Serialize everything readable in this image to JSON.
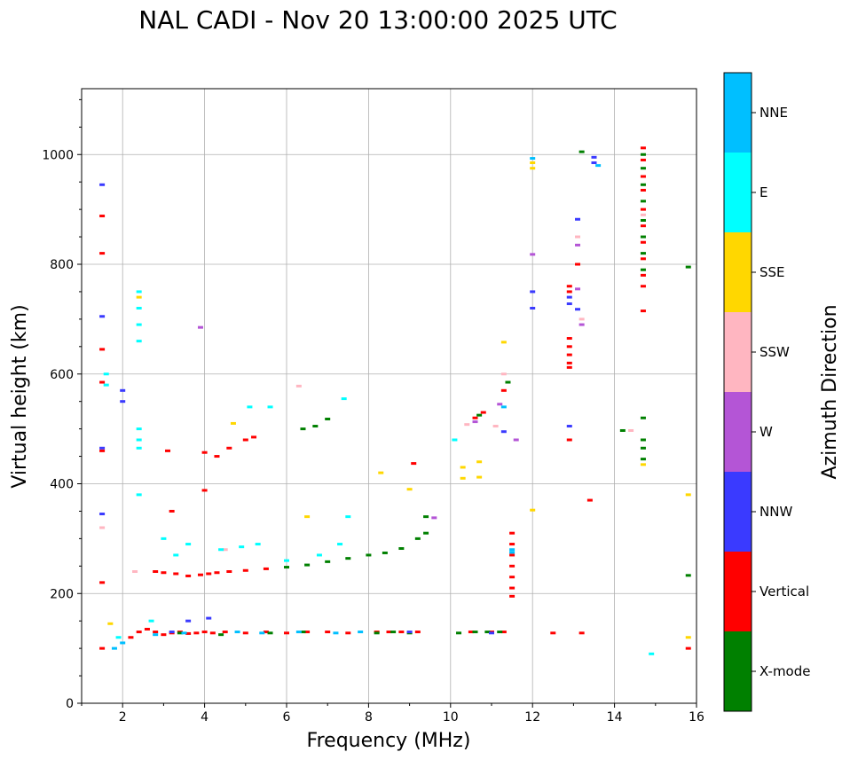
{
  "chart_data": {
    "type": "scatter",
    "title": "NAL CADI - Nov 20 13:00:00 2025 UTC",
    "xlabel": "Frequency (MHz)",
    "ylabel": "Virtual height (km)",
    "xlim": [
      1,
      16
    ],
    "ylim": [
      0,
      1120
    ],
    "xticks": [
      2,
      4,
      6,
      8,
      10,
      12,
      14,
      16
    ],
    "yticks": [
      0,
      200,
      400,
      600,
      800,
      1000
    ],
    "grid": true,
    "colorbar": {
      "title": "Azimuth Direction",
      "categories": [
        {
          "name": "X-mode",
          "color": "#008000"
        },
        {
          "name": "Vertical",
          "color": "#ff0000"
        },
        {
          "name": "NNW",
          "color": "#3a3aff"
        },
        {
          "name": "W",
          "color": "#b455d6"
        },
        {
          "name": "SSW",
          "color": "#ffb6c1"
        },
        {
          "name": "SSE",
          "color": "#ffd700"
        },
        {
          "name": "E",
          "color": "#00ffff"
        },
        {
          "name": "NNE",
          "color": "#00bfff"
        }
      ]
    },
    "series": [
      {
        "name": "Vertical",
        "points": [
          [
            1.5,
            100
          ],
          [
            1.5,
            220
          ],
          [
            1.5,
            460
          ],
          [
            1.5,
            585
          ],
          [
            1.5,
            645
          ],
          [
            1.5,
            820
          ],
          [
            1.5,
            888
          ],
          [
            2.2,
            120
          ],
          [
            2.4,
            130
          ],
          [
            2.6,
            135
          ],
          [
            2.8,
            130
          ],
          [
            3.0,
            125
          ],
          [
            3.2,
            128
          ],
          [
            3.4,
            130
          ],
          [
            3.6,
            127
          ],
          [
            3.8,
            128
          ],
          [
            4.0,
            130
          ],
          [
            4.2,
            128
          ],
          [
            4.5,
            130
          ],
          [
            5.0,
            128
          ],
          [
            5.5,
            130
          ],
          [
            6.0,
            128
          ],
          [
            6.5,
            130
          ],
          [
            7.0,
            130
          ],
          [
            7.5,
            128
          ],
          [
            8.2,
            130
          ],
          [
            8.5,
            130
          ],
          [
            8.8,
            130
          ],
          [
            9.2,
            130
          ],
          [
            10.5,
            130
          ],
          [
            11.0,
            130
          ],
          [
            11.3,
            130
          ],
          [
            12.5,
            128
          ],
          [
            13.2,
            128
          ],
          [
            2.8,
            240
          ],
          [
            3.0,
            238
          ],
          [
            3.3,
            236
          ],
          [
            3.6,
            232
          ],
          [
            3.9,
            234
          ],
          [
            4.1,
            236
          ],
          [
            4.3,
            238
          ],
          [
            4.6,
            240
          ],
          [
            5.0,
            242
          ],
          [
            5.5,
            245
          ],
          [
            3.2,
            350
          ],
          [
            3.1,
            460
          ],
          [
            4.0,
            388
          ],
          [
            4.0,
            457
          ],
          [
            4.3,
            450
          ],
          [
            4.6,
            465
          ],
          [
            5.0,
            480
          ],
          [
            5.2,
            485
          ],
          [
            9.1,
            437
          ],
          [
            10.6,
            520
          ],
          [
            10.8,
            530
          ],
          [
            11.3,
            570
          ],
          [
            11.5,
            310
          ],
          [
            11.5,
            290
          ],
          [
            11.5,
            270
          ],
          [
            11.5,
            250
          ],
          [
            11.5,
            230
          ],
          [
            11.5,
            210
          ],
          [
            11.5,
            195
          ],
          [
            12.9,
            665
          ],
          [
            12.9,
            650
          ],
          [
            12.9,
            635
          ],
          [
            12.9,
            620
          ],
          [
            12.9,
            612
          ],
          [
            12.9,
            760
          ],
          [
            12.9,
            750
          ],
          [
            12.9,
            480
          ],
          [
            13.1,
            800
          ],
          [
            13.4,
            370
          ],
          [
            14.7,
            1012
          ],
          [
            14.7,
            990
          ],
          [
            14.7,
            960
          ],
          [
            14.7,
            935
          ],
          [
            14.7,
            900
          ],
          [
            14.7,
            870
          ],
          [
            14.7,
            840
          ],
          [
            14.7,
            810
          ],
          [
            14.7,
            780
          ],
          [
            14.7,
            760
          ],
          [
            14.7,
            715
          ],
          [
            15.8,
            100
          ]
        ]
      },
      {
        "name": "X-mode",
        "points": [
          [
            3.4,
            128
          ],
          [
            4.4,
            125
          ],
          [
            5.6,
            128
          ],
          [
            6.4,
            130
          ],
          [
            8.2,
            128
          ],
          [
            8.6,
            130
          ],
          [
            9.0,
            128
          ],
          [
            10.2,
            128
          ],
          [
            10.6,
            130
          ],
          [
            10.9,
            130
          ],
          [
            11.2,
            130
          ],
          [
            6.0,
            248
          ],
          [
            6.5,
            252
          ],
          [
            7.0,
            258
          ],
          [
            7.5,
            264
          ],
          [
            8.0,
            270
          ],
          [
            8.4,
            274
          ],
          [
            8.8,
            282
          ],
          [
            9.2,
            300
          ],
          [
            9.4,
            310
          ],
          [
            9.4,
            340
          ],
          [
            6.4,
            500
          ],
          [
            6.7,
            505
          ],
          [
            7.0,
            518
          ],
          [
            10.7,
            525
          ],
          [
            11.4,
            585
          ],
          [
            13.2,
            1005
          ],
          [
            14.7,
            1000
          ],
          [
            14.7,
            975
          ],
          [
            14.7,
            945
          ],
          [
            14.7,
            915
          ],
          [
            14.7,
            880
          ],
          [
            14.7,
            850
          ],
          [
            14.7,
            820
          ],
          [
            14.7,
            790
          ],
          [
            14.7,
            520
          ],
          [
            14.7,
            480
          ],
          [
            14.7,
            465
          ],
          [
            14.7,
            445
          ],
          [
            14.2,
            497
          ],
          [
            15.8,
            795
          ],
          [
            15.8,
            233
          ]
        ]
      },
      {
        "name": "NNW",
        "points": [
          [
            1.5,
            345
          ],
          [
            1.5,
            465
          ],
          [
            1.5,
            705
          ],
          [
            1.5,
            945
          ],
          [
            2.0,
            570
          ],
          [
            2.0,
            550
          ],
          [
            3.2,
            130
          ],
          [
            3.6,
            150
          ],
          [
            4.1,
            155
          ],
          [
            9.0,
            130
          ],
          [
            11.0,
            128
          ],
          [
            11.3,
            495
          ],
          [
            12.0,
            750
          ],
          [
            12.0,
            720
          ],
          [
            12.9,
            740
          ],
          [
            12.9,
            728
          ],
          [
            12.9,
            505
          ],
          [
            13.1,
            882
          ],
          [
            13.1,
            718
          ],
          [
            13.5,
            985
          ],
          [
            13.5,
            995
          ]
        ]
      },
      {
        "name": "W",
        "points": [
          [
            3.9,
            685
          ],
          [
            10.6,
            513
          ],
          [
            11.2,
            545
          ],
          [
            11.6,
            480
          ],
          [
            12.0,
            818
          ],
          [
            13.1,
            835
          ],
          [
            13.1,
            755
          ],
          [
            13.2,
            690
          ],
          [
            9.6,
            338
          ]
        ]
      },
      {
        "name": "SSW",
        "points": [
          [
            1.5,
            320
          ],
          [
            2.3,
            240
          ],
          [
            4.5,
            280
          ],
          [
            6.3,
            578
          ],
          [
            10.4,
            508
          ],
          [
            11.1,
            505
          ],
          [
            11.3,
            600
          ],
          [
            13.1,
            850
          ],
          [
            13.2,
            700
          ],
          [
            14.4,
            497
          ],
          [
            14.7,
            890
          ]
        ]
      },
      {
        "name": "SSE",
        "points": [
          [
            1.7,
            145
          ],
          [
            2.4,
            740
          ],
          [
            4.7,
            510
          ],
          [
            6.5,
            340
          ],
          [
            8.3,
            420
          ],
          [
            9.0,
            390
          ],
          [
            10.3,
            430
          ],
          [
            10.3,
            410
          ],
          [
            10.7,
            440
          ],
          [
            10.7,
            412
          ],
          [
            11.3,
            658
          ],
          [
            12.0,
            985
          ],
          [
            12.0,
            975
          ],
          [
            12.0,
            352
          ],
          [
            14.7,
            435
          ],
          [
            15.8,
            380
          ],
          [
            15.8,
            120
          ]
        ]
      },
      {
        "name": "E",
        "points": [
          [
            1.6,
            600
          ],
          [
            1.6,
            580
          ],
          [
            2.4,
            750
          ],
          [
            2.4,
            720
          ],
          [
            2.4,
            690
          ],
          [
            2.4,
            660
          ],
          [
            2.4,
            500
          ],
          [
            2.4,
            480
          ],
          [
            2.4,
            465
          ],
          [
            2.4,
            380
          ],
          [
            1.9,
            120
          ],
          [
            2.7,
            150
          ],
          [
            3.0,
            300
          ],
          [
            3.3,
            270
          ],
          [
            3.6,
            290
          ],
          [
            4.4,
            280
          ],
          [
            4.9,
            285
          ],
          [
            5.3,
            290
          ],
          [
            6.0,
            260
          ],
          [
            6.8,
            270
          ],
          [
            7.3,
            290
          ],
          [
            7.5,
            340
          ],
          [
            5.1,
            540
          ],
          [
            5.6,
            540
          ],
          [
            7.4,
            555
          ],
          [
            10.1,
            480
          ],
          [
            14.9,
            90
          ]
        ]
      },
      {
        "name": "NNE",
        "points": [
          [
            1.8,
            100
          ],
          [
            2.0,
            110
          ],
          [
            2.8,
            125
          ],
          [
            3.5,
            128
          ],
          [
            4.8,
            130
          ],
          [
            5.4,
            128
          ],
          [
            6.3,
            130
          ],
          [
            7.2,
            128
          ],
          [
            7.8,
            130
          ],
          [
            11.5,
            280
          ],
          [
            11.5,
            275
          ],
          [
            11.3,
            540
          ],
          [
            12.0,
            993
          ],
          [
            13.6,
            980
          ]
        ]
      }
    ]
  }
}
